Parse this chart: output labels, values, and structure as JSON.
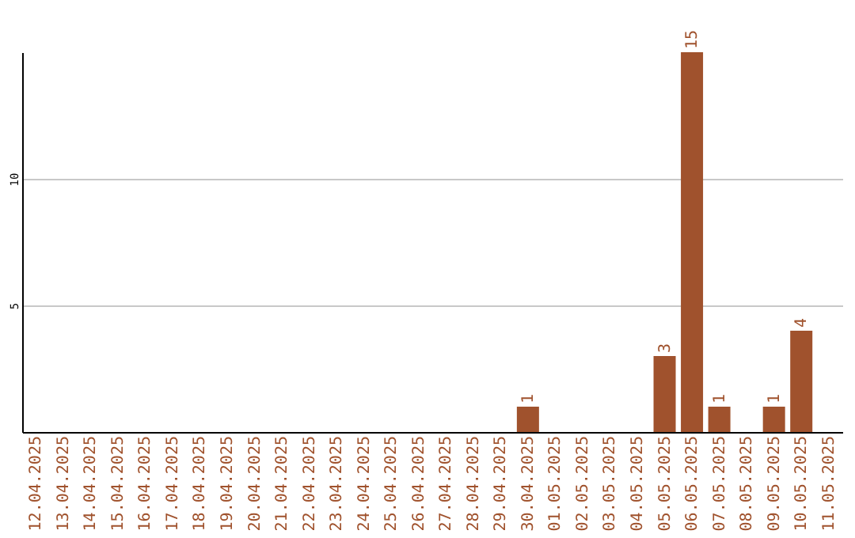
{
  "chart_data": {
    "type": "bar",
    "categories": [
      "12.04.2025",
      "13.04.2025",
      "14.04.2025",
      "15.04.2025",
      "16.04.2025",
      "17.04.2025",
      "18.04.2025",
      "19.04.2025",
      "20.04.2025",
      "21.04.2025",
      "22.04.2025",
      "23.04.2025",
      "24.04.2025",
      "25.04.2025",
      "26.04.2025",
      "27.04.2025",
      "28.04.2025",
      "29.04.2025",
      "30.04.2025",
      "01.05.2025",
      "02.05.2025",
      "03.05.2025",
      "04.05.2025",
      "05.05.2025",
      "06.05.2025",
      "07.05.2025",
      "08.05.2025",
      "09.05.2025",
      "10.05.2025",
      "11.05.2025"
    ],
    "values": [
      0,
      0,
      0,
      0,
      0,
      0,
      0,
      0,
      0,
      0,
      0,
      0,
      0,
      0,
      0,
      0,
      0,
      0,
      1,
      0,
      0,
      0,
      0,
      3,
      15,
      1,
      0,
      1,
      4,
      0
    ],
    "value_labels": [
      null,
      null,
      null,
      null,
      null,
      null,
      null,
      null,
      null,
      null,
      null,
      null,
      null,
      null,
      null,
      null,
      null,
      null,
      "1",
      null,
      null,
      null,
      null,
      "3",
      "15",
      "1",
      null,
      "1",
      "4",
      null
    ],
    "color": "#a0522d",
    "ylim": [
      0,
      15
    ],
    "yticks": [
      5,
      10
    ],
    "grid": "y"
  }
}
